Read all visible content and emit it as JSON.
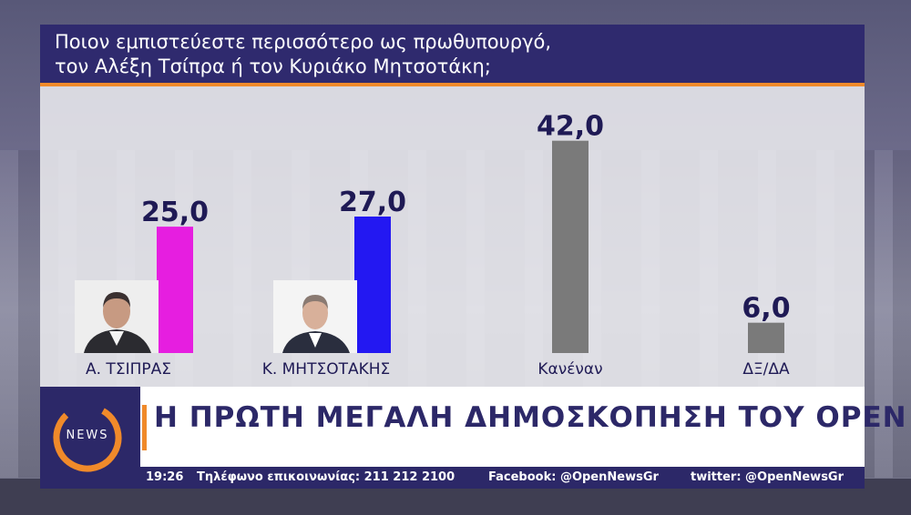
{
  "title": {
    "line1": "Ποιον εμπιστεύεστε περισσότερο ως πρωθυπουργό,",
    "line2": "τον Αλέξη Τσίπρα ή τον Κυριάκο Μητσοτάκη;"
  },
  "chart_data": {
    "type": "bar",
    "title": "Ποιον εμπιστεύεστε περισσότερο ως πρωθυπουργό, τον Αλέξη Τσίπρα ή τον Κυριάκο Μητσοτάκη;",
    "categories": [
      "Α. ΤΣΙΠΡΑΣ",
      "Κ. ΜΗΤΣΟΤΑΚΗΣ",
      "Κανέναν",
      "ΔΞ/ΔΑ"
    ],
    "values": [
      25.0,
      27.0,
      42.0,
      6.0
    ],
    "value_labels": [
      "25,0",
      "27,0",
      "42,0",
      "6,0"
    ],
    "colors": [
      "#e61ee0",
      "#2318f2",
      "#7a7a7a",
      "#7a7a7a"
    ],
    "xlabel": "",
    "ylabel": "",
    "ylim": [
      0,
      45
    ],
    "grid": false,
    "legend": "none"
  },
  "branding": {
    "logo_text": "NEWS",
    "headline": "Η ΠΡΩΤΗ ΜΕΓΑΛΗ ΔΗΜΟΣΚΟΠΗΣΗ ΤΟΥ OPEN",
    "accent_color": "#f08a2a",
    "brand_color": "#2c2868"
  },
  "ticker": {
    "time": "19:26",
    "phone": "Τηλέφωνο επικοινωνίας: 211 212 2100",
    "facebook": "Facebook: @OpenNewsGr",
    "twitter": "twitter: @OpenNewsGr"
  },
  "icons": {
    "photo_1": "person-photo-tsipras",
    "photo_2": "person-photo-mitsotakis",
    "logo": "open-news-logo-icon"
  }
}
